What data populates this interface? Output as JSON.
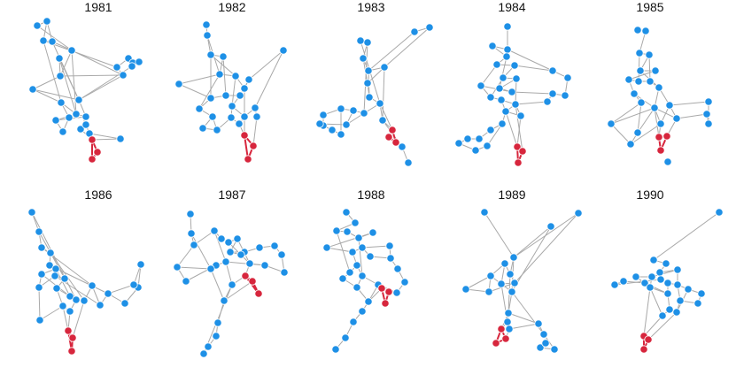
{
  "colors": {
    "edge": "#a9a9a9",
    "node_default": "#1e90e6",
    "node_highlight": "#d7263d",
    "node_stroke": "#ffffff",
    "edge_highlight": "#d7263d"
  },
  "panels": [
    {
      "title": "1981"
    },
    {
      "title": "1982"
    },
    {
      "title": "1983"
    },
    {
      "title": "1984"
    },
    {
      "title": "1985"
    },
    {
      "title": "1986"
    },
    {
      "title": "1987"
    },
    {
      "title": "1988"
    },
    {
      "title": "1989"
    },
    {
      "title": "1990"
    }
  ]
}
